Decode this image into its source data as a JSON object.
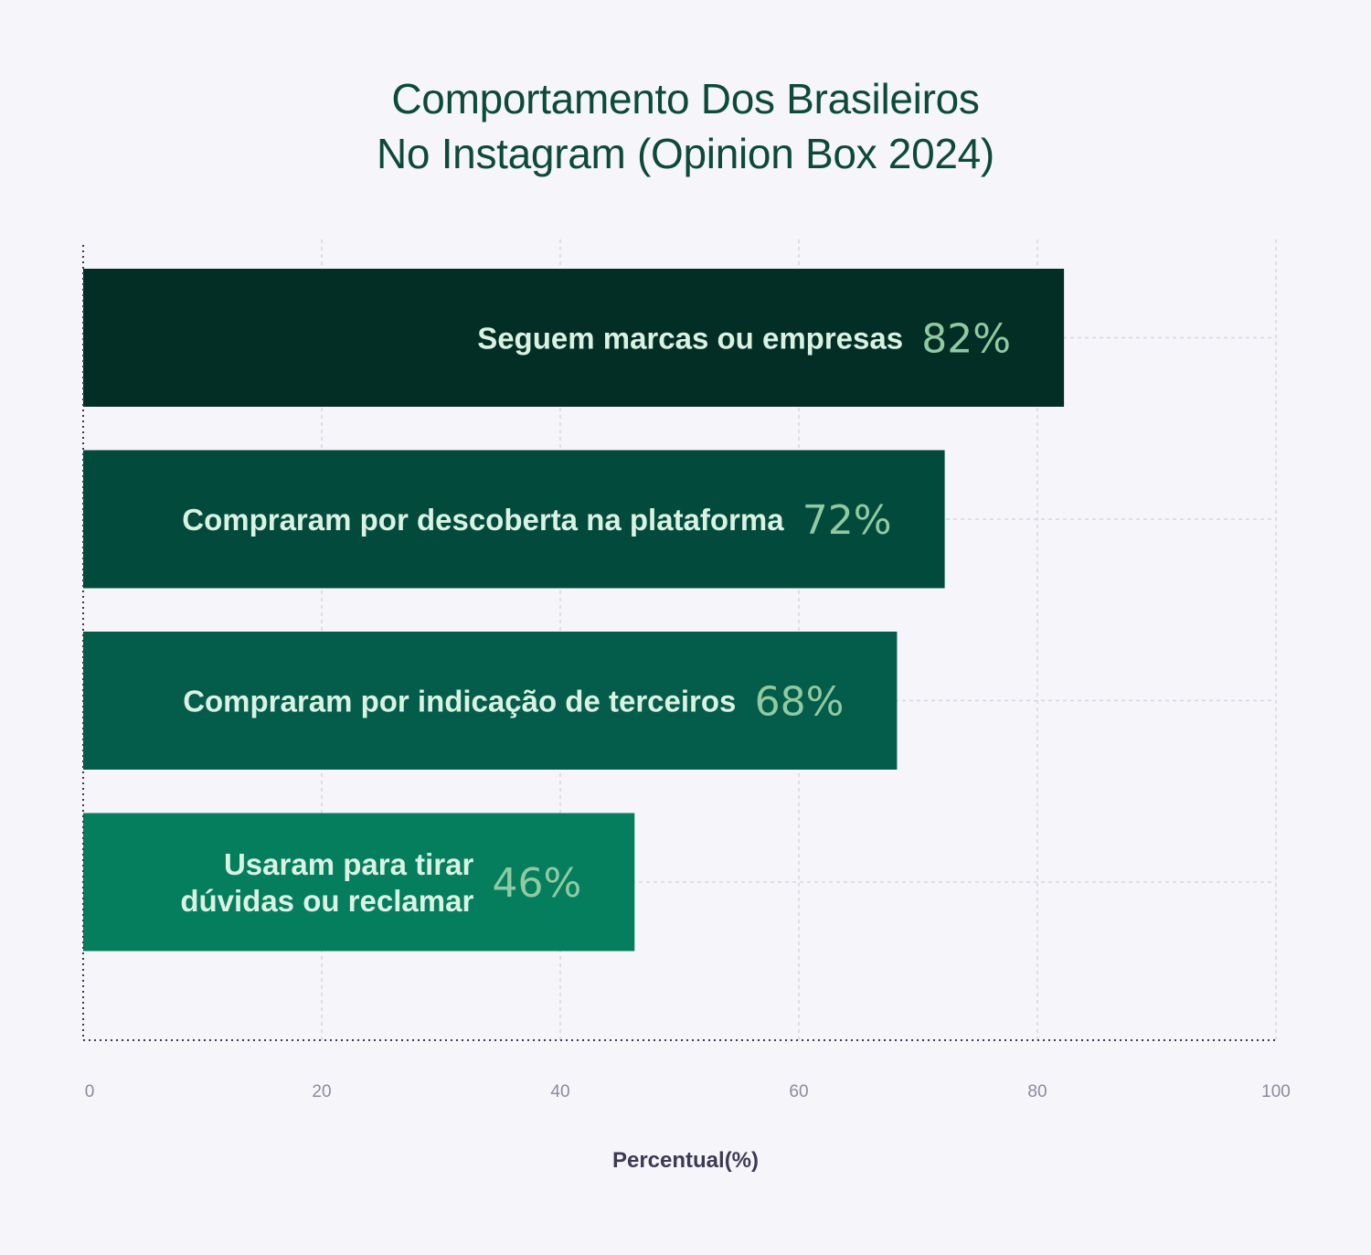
{
  "chart_data": {
    "type": "bar",
    "orientation": "horizontal",
    "title_lines": [
      "Comportamento Dos Brasileiros",
      "No Instagram (Opinion Box 2024)"
    ],
    "xlabel": "Percentual(%)",
    "xlim": [
      0,
      100
    ],
    "x_ticks": [
      "0",
      "20",
      "40",
      "60",
      "80",
      "100"
    ],
    "grid": true,
    "categories": [
      [
        "Seguem marcas ou empresas"
      ],
      [
        "Compraram por descoberta na plataforma"
      ],
      [
        "Compraram por indicação de terceiros"
      ],
      [
        "Usaram para tirar",
        "dúvidas ou reclamar"
      ]
    ],
    "values": [
      82,
      72,
      68,
      46
    ],
    "value_labels": [
      "82%",
      "72%",
      "68%",
      "46%"
    ],
    "bar_colors": [
      "#032e25",
      "#024b3c",
      "#045d4a",
      "#057e5e"
    ],
    "label_color": "#d9f2e3",
    "value_color": "#8fcaa2",
    "title_color": "#0d4a38"
  }
}
